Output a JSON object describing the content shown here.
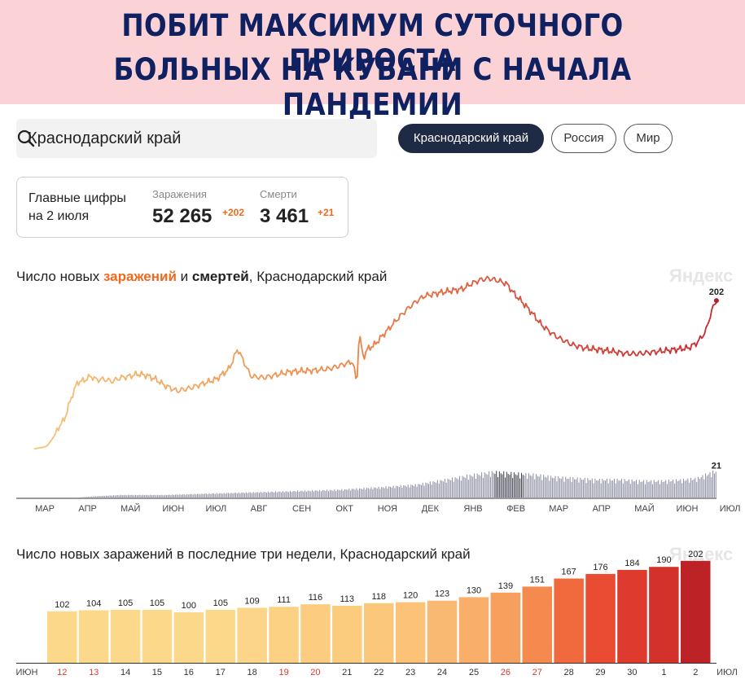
{
  "banner": {
    "line1": "ПОБИТ МАКСИМУМ СУТОЧНОГО ПРИРОСТА",
    "line2": "БОЛЬНЫХ НА КУБАНИ С НАЧАЛА ПАНДЕМИИ",
    "background": "#fbd3d6",
    "text_color": "#0f2160"
  },
  "search": {
    "value": "Краснодарский край",
    "icon": "search-icon"
  },
  "region_tabs": [
    {
      "label": "Краснодарский край",
      "active": true
    },
    {
      "label": "Россия",
      "active": false
    },
    {
      "label": "Мир",
      "active": false
    }
  ],
  "summary": {
    "title_line1": "Главные цифры",
    "title_line2": "на 2 июля",
    "infections_label": "Заражения",
    "infections_value": "52 265",
    "infections_delta": "+202",
    "deaths_label": "Смерти",
    "deaths_value": "3 461",
    "deaths_delta": "+21",
    "accent": "#f0691f"
  },
  "chart1": {
    "title_prefix": "Число новых ",
    "title_infections": "заражений",
    "title_and": " и ",
    "title_deaths": "смертей",
    "title_suffix": ", Краснодарский край",
    "watermark": "Яндекс"
  },
  "chart2": {
    "title": "Число новых заражений в последние три недели, Краснодарский край",
    "watermark": "Яндекс"
  },
  "chart_data": [
    {
      "type": "line",
      "title": "Число новых заражений и смертей, Краснодарский край",
      "x_ticks": [
        "МАР",
        "АПР",
        "МАЙ",
        "ИЮН",
        "ИЮЛ",
        "АВГ",
        "СЕН",
        "ОКТ",
        "НОЯ",
        "ДЕК",
        "ЯНВ",
        "ФЕВ",
        "МАР",
        "АПР",
        "МАЙ",
        "ИЮН",
        "ИЮЛ"
      ],
      "series": [
        {
          "name": "заражения",
          "points": [
            [
              0,
              2
            ],
            [
              0.2,
              4
            ],
            [
              0.3,
              6
            ],
            [
              0.45,
              18
            ],
            [
              0.55,
              30
            ],
            [
              0.7,
              42
            ],
            [
              0.85,
              70
            ],
            [
              1.0,
              92
            ],
            [
              1.15,
              94
            ],
            [
              1.3,
              100
            ],
            [
              1.45,
              95
            ],
            [
              1.6,
              96
            ],
            [
              1.8,
              93
            ],
            [
              2.0,
              98
            ],
            [
              2.2,
              100
            ],
            [
              2.4,
              103
            ],
            [
              2.6,
              101
            ],
            [
              2.8,
              96
            ],
            [
              3.0,
              88
            ],
            [
              3.3,
              80
            ],
            [
              3.6,
              84
            ],
            [
              3.9,
              90
            ],
            [
              4.2,
              96
            ],
            [
              4.5,
              110
            ],
            [
              4.7,
              137
            ],
            [
              4.85,
              118
            ],
            [
              5.0,
              100
            ],
            [
              5.3,
              98
            ],
            [
              5.6,
              102
            ],
            [
              5.9,
              106
            ],
            [
              6.2,
              107
            ],
            [
              6.5,
              108
            ],
            [
              6.8,
              110
            ],
            [
              7.1,
              115
            ],
            [
              7.35,
              120
            ],
            [
              7.45,
              90
            ],
            [
              7.5,
              158
            ],
            [
              7.6,
              125
            ],
            [
              7.7,
              137
            ],
            [
              7.85,
              142
            ],
            [
              8.0,
              152
            ],
            [
              8.2,
              165
            ],
            [
              8.4,
              178
            ],
            [
              8.6,
              190
            ],
            [
              8.8,
              200
            ],
            [
              9.0,
              208
            ],
            [
              9.3,
              212
            ],
            [
              9.6,
              215
            ],
            [
              9.9,
              218
            ],
            [
              10.1,
              225
            ],
            [
              10.3,
              230
            ],
            [
              10.5,
              232
            ],
            [
              10.7,
              229
            ],
            [
              10.9,
              225
            ],
            [
              11.1,
              210
            ],
            [
              11.3,
              198
            ],
            [
              11.5,
              185
            ],
            [
              11.7,
              170
            ],
            [
              11.9,
              160
            ],
            [
              12.1,
              152
            ],
            [
              12.4,
              143
            ],
            [
              12.7,
              138
            ],
            [
              13.0,
              136
            ],
            [
              13.3,
              134
            ],
            [
              13.6,
              131
            ],
            [
              13.9,
              130
            ],
            [
              14.2,
              132
            ],
            [
              14.5,
              134
            ],
            [
              14.8,
              136
            ],
            [
              15.1,
              138
            ],
            [
              15.3,
              145
            ],
            [
              15.5,
              160
            ],
            [
              15.65,
              190
            ],
            [
              15.75,
              202
            ]
          ]
        },
        {
          "name": "смерти",
          "points": [
            [
              1.0,
              0
            ],
            [
              1.4,
              1
            ],
            [
              2.0,
              2
            ],
            [
              3.0,
              2
            ],
            [
              4.0,
              3
            ],
            [
              5.0,
              4
            ],
            [
              6.0,
              5
            ],
            [
              7.0,
              6
            ],
            [
              8.0,
              8
            ],
            [
              8.8,
              10
            ],
            [
              9.5,
              14
            ],
            [
              10.0,
              17
            ],
            [
              10.6,
              20
            ],
            [
              11.0,
              19
            ],
            [
              11.5,
              18
            ],
            [
              12.0,
              16
            ],
            [
              12.5,
              15
            ],
            [
              13.0,
              14
            ],
            [
              13.5,
              14
            ],
            [
              14.0,
              13
            ],
            [
              14.5,
              13
            ],
            [
              15.0,
              14
            ],
            [
              15.3,
              15
            ],
            [
              15.5,
              18
            ],
            [
              15.75,
              21
            ]
          ]
        }
      ],
      "annotations": [
        "202",
        "21"
      ]
    },
    {
      "type": "bar",
      "title": "Число новых заражений в последние три недели, Краснодарский край",
      "categories": [
        "12",
        "13",
        "14",
        "15",
        "16",
        "17",
        "18",
        "19",
        "20",
        "21",
        "22",
        "23",
        "24",
        "25",
        "26",
        "27",
        "28",
        "29",
        "30",
        "1",
        "2"
      ],
      "values": [
        102,
        104,
        105,
        105,
        100,
        105,
        109,
        111,
        116,
        113,
        118,
        120,
        123,
        130,
        139,
        151,
        167,
        176,
        184,
        190,
        202
      ],
      "weekend_categories": [
        "12",
        "13",
        "19",
        "20",
        "26",
        "27"
      ],
      "axis_start_label": "ИЮН",
      "axis_end_label": "ИЮЛ"
    }
  ]
}
